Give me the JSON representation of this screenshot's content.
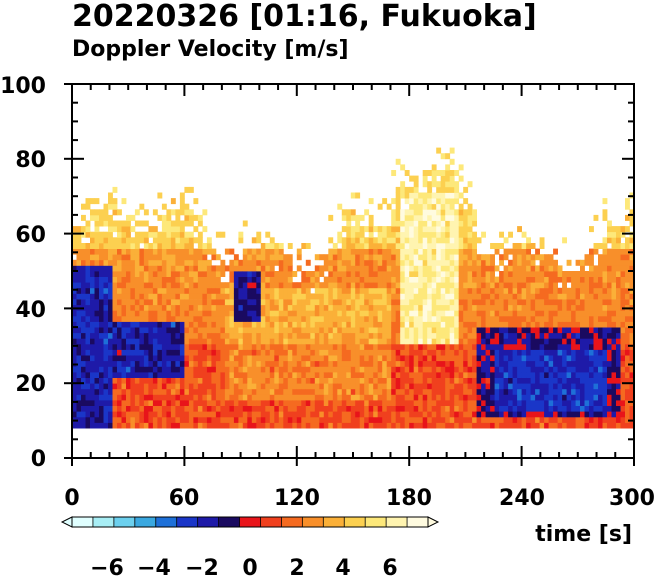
{
  "title": "20220326 [01:16, Fukuoka]",
  "subtitle": "Doppler Velocity [m/s]",
  "chart_data": {
    "type": "heatmap",
    "x_ticks": [
      "0",
      "60",
      "120",
      "180",
      "240",
      "300"
    ],
    "y_ticks": [
      "0",
      "20",
      "40",
      "60",
      "80",
      "100"
    ],
    "xlabel": "time [s]",
    "xlim": [
      0,
      300
    ],
    "ylim": [
      0,
      100
    ],
    "colorbar": {
      "ticks": [
        "−6",
        "−4",
        "−2",
        "0",
        "2",
        "4",
        "6"
      ],
      "range": [
        -7.5,
        7.5
      ],
      "colors": [
        "#e0ffff",
        "#a8eef5",
        "#6cd0ee",
        "#3aa8e0",
        "#1e70d8",
        "#1a36c8",
        "#1e1aa8",
        "#1a0a60",
        "#e8141a",
        "#f0401e",
        "#f56a20",
        "#f88f2a",
        "#fbb038",
        "#fcd050",
        "#fde87a",
        "#fff4b0",
        "#fffbe0"
      ]
    },
    "data_bottom": 8,
    "regions": [
      {
        "velocity": "negative",
        "t": [
          0,
          20
        ],
        "h": [
          8,
          50
        ]
      },
      {
        "velocity": "negative",
        "t": [
          20,
          55
        ],
        "h": [
          22,
          35
        ]
      },
      {
        "velocity": "negative",
        "t": [
          215,
          290
        ],
        "h": [
          10,
          35
        ]
      },
      {
        "velocity": "positive-strong",
        "t": [
          180,
          200
        ],
        "h": [
          30,
          65
        ]
      }
    ]
  }
}
